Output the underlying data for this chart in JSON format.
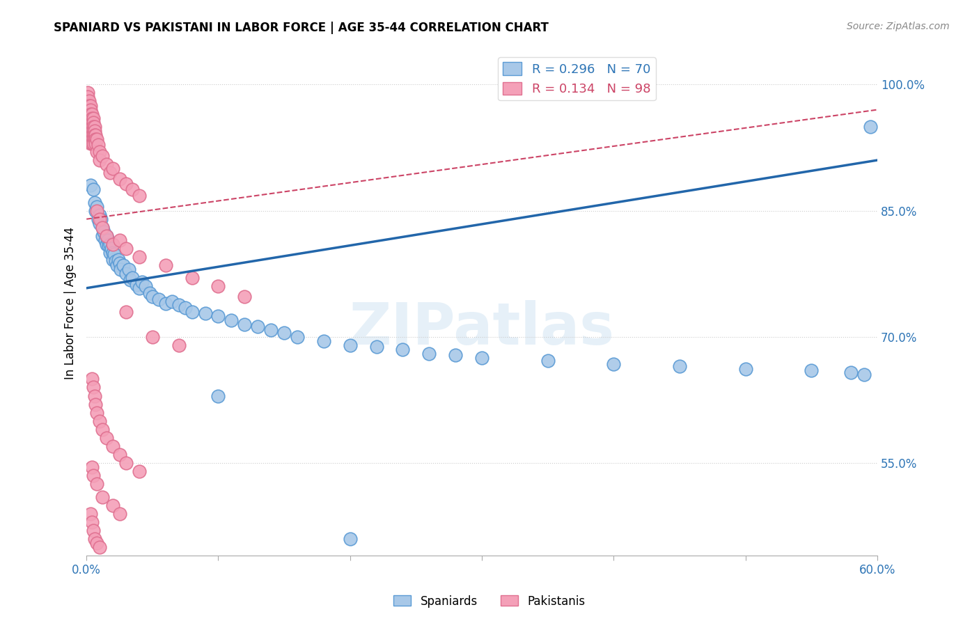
{
  "title": "SPANIARD VS PAKISTANI IN LABOR FORCE | AGE 35-44 CORRELATION CHART",
  "source": "Source: ZipAtlas.com",
  "ylabel": "In Labor Force | Age 35-44",
  "ytick_labels": [
    "55.0%",
    "70.0%",
    "85.0%",
    "100.0%"
  ],
  "ytick_values": [
    0.55,
    0.7,
    0.85,
    1.0
  ],
  "xlim": [
    0.0,
    0.6
  ],
  "ylim": [
    0.44,
    1.04
  ],
  "legend_blue_label": "R = 0.296   N = 70",
  "legend_pink_label": "R = 0.134   N = 98",
  "watermark": "ZIPatlas",
  "blue_color": "#A8C8E8",
  "pink_color": "#F4A0B8",
  "blue_edge": "#5B9BD5",
  "pink_edge": "#E07090",
  "blue_scatter": [
    [
      0.003,
      0.88
    ],
    [
      0.005,
      0.875
    ],
    [
      0.006,
      0.86
    ],
    [
      0.007,
      0.85
    ],
    [
      0.008,
      0.855
    ],
    [
      0.009,
      0.84
    ],
    [
      0.01,
      0.845
    ],
    [
      0.01,
      0.835
    ],
    [
      0.011,
      0.84
    ],
    [
      0.012,
      0.83
    ],
    [
      0.012,
      0.82
    ],
    [
      0.013,
      0.825
    ],
    [
      0.014,
      0.815
    ],
    [
      0.015,
      0.82
    ],
    [
      0.015,
      0.81
    ],
    [
      0.016,
      0.815
    ],
    [
      0.017,
      0.808
    ],
    [
      0.018,
      0.81
    ],
    [
      0.018,
      0.8
    ],
    [
      0.019,
      0.805
    ],
    [
      0.02,
      0.8
    ],
    [
      0.02,
      0.792
    ],
    [
      0.021,
      0.798
    ],
    [
      0.022,
      0.79
    ],
    [
      0.023,
      0.785
    ],
    [
      0.024,
      0.792
    ],
    [
      0.025,
      0.788
    ],
    [
      0.026,
      0.78
    ],
    [
      0.028,
      0.785
    ],
    [
      0.03,
      0.775
    ],
    [
      0.032,
      0.78
    ],
    [
      0.033,
      0.768
    ],
    [
      0.035,
      0.77
    ],
    [
      0.038,
      0.762
    ],
    [
      0.04,
      0.758
    ],
    [
      0.042,
      0.765
    ],
    [
      0.045,
      0.76
    ],
    [
      0.048,
      0.752
    ],
    [
      0.05,
      0.748
    ],
    [
      0.055,
      0.745
    ],
    [
      0.06,
      0.74
    ],
    [
      0.065,
      0.742
    ],
    [
      0.07,
      0.738
    ],
    [
      0.075,
      0.735
    ],
    [
      0.08,
      0.73
    ],
    [
      0.09,
      0.728
    ],
    [
      0.1,
      0.725
    ],
    [
      0.11,
      0.72
    ],
    [
      0.12,
      0.715
    ],
    [
      0.13,
      0.712
    ],
    [
      0.14,
      0.708
    ],
    [
      0.15,
      0.705
    ],
    [
      0.16,
      0.7
    ],
    [
      0.18,
      0.695
    ],
    [
      0.2,
      0.69
    ],
    [
      0.22,
      0.688
    ],
    [
      0.24,
      0.685
    ],
    [
      0.26,
      0.68
    ],
    [
      0.28,
      0.678
    ],
    [
      0.3,
      0.675
    ],
    [
      0.35,
      0.672
    ],
    [
      0.4,
      0.668
    ],
    [
      0.45,
      0.665
    ],
    [
      0.5,
      0.662
    ],
    [
      0.55,
      0.66
    ],
    [
      0.58,
      0.658
    ],
    [
      0.59,
      0.655
    ],
    [
      0.595,
      0.95
    ],
    [
      0.1,
      0.63
    ],
    [
      0.2,
      0.46
    ]
  ],
  "pink_scatter": [
    [
      0.0,
      0.98
    ],
    [
      0.0,
      0.97
    ],
    [
      0.001,
      0.99
    ],
    [
      0.001,
      0.985
    ],
    [
      0.001,
      0.975
    ],
    [
      0.001,
      0.965
    ],
    [
      0.001,
      0.96
    ],
    [
      0.002,
      0.98
    ],
    [
      0.002,
      0.975
    ],
    [
      0.002,
      0.97
    ],
    [
      0.002,
      0.965
    ],
    [
      0.002,
      0.96
    ],
    [
      0.002,
      0.955
    ],
    [
      0.002,
      0.95
    ],
    [
      0.003,
      0.975
    ],
    [
      0.003,
      0.97
    ],
    [
      0.003,
      0.965
    ],
    [
      0.003,
      0.96
    ],
    [
      0.003,
      0.955
    ],
    [
      0.003,
      0.95
    ],
    [
      0.003,
      0.945
    ],
    [
      0.003,
      0.94
    ],
    [
      0.003,
      0.935
    ],
    [
      0.003,
      0.93
    ],
    [
      0.004,
      0.965
    ],
    [
      0.004,
      0.96
    ],
    [
      0.004,
      0.955
    ],
    [
      0.004,
      0.95
    ],
    [
      0.004,
      0.945
    ],
    [
      0.004,
      0.94
    ],
    [
      0.004,
      0.935
    ],
    [
      0.004,
      0.93
    ],
    [
      0.005,
      0.96
    ],
    [
      0.005,
      0.955
    ],
    [
      0.005,
      0.95
    ],
    [
      0.005,
      0.945
    ],
    [
      0.005,
      0.94
    ],
    [
      0.005,
      0.935
    ],
    [
      0.005,
      0.93
    ],
    [
      0.006,
      0.95
    ],
    [
      0.006,
      0.945
    ],
    [
      0.006,
      0.94
    ],
    [
      0.006,
      0.935
    ],
    [
      0.007,
      0.94
    ],
    [
      0.007,
      0.935
    ],
    [
      0.007,
      0.93
    ],
    [
      0.008,
      0.935
    ],
    [
      0.008,
      0.92
    ],
    [
      0.009,
      0.928
    ],
    [
      0.01,
      0.92
    ],
    [
      0.01,
      0.91
    ],
    [
      0.012,
      0.915
    ],
    [
      0.015,
      0.905
    ],
    [
      0.018,
      0.895
    ],
    [
      0.02,
      0.9
    ],
    [
      0.025,
      0.888
    ],
    [
      0.03,
      0.882
    ],
    [
      0.035,
      0.875
    ],
    [
      0.04,
      0.868
    ],
    [
      0.008,
      0.85
    ],
    [
      0.01,
      0.84
    ],
    [
      0.012,
      0.83
    ],
    [
      0.015,
      0.82
    ],
    [
      0.02,
      0.81
    ],
    [
      0.025,
      0.815
    ],
    [
      0.03,
      0.805
    ],
    [
      0.04,
      0.795
    ],
    [
      0.06,
      0.785
    ],
    [
      0.08,
      0.77
    ],
    [
      0.1,
      0.76
    ],
    [
      0.12,
      0.748
    ],
    [
      0.03,
      0.73
    ],
    [
      0.05,
      0.7
    ],
    [
      0.07,
      0.69
    ],
    [
      0.004,
      0.65
    ],
    [
      0.005,
      0.64
    ],
    [
      0.006,
      0.63
    ],
    [
      0.007,
      0.62
    ],
    [
      0.008,
      0.61
    ],
    [
      0.01,
      0.6
    ],
    [
      0.012,
      0.59
    ],
    [
      0.015,
      0.58
    ],
    [
      0.02,
      0.57
    ],
    [
      0.025,
      0.56
    ],
    [
      0.03,
      0.55
    ],
    [
      0.04,
      0.54
    ],
    [
      0.004,
      0.545
    ],
    [
      0.005,
      0.535
    ],
    [
      0.008,
      0.525
    ],
    [
      0.012,
      0.51
    ],
    [
      0.02,
      0.5
    ],
    [
      0.025,
      0.49
    ],
    [
      0.003,
      0.49
    ],
    [
      0.004,
      0.48
    ],
    [
      0.005,
      0.47
    ],
    [
      0.006,
      0.46
    ],
    [
      0.008,
      0.455
    ],
    [
      0.01,
      0.45
    ]
  ]
}
